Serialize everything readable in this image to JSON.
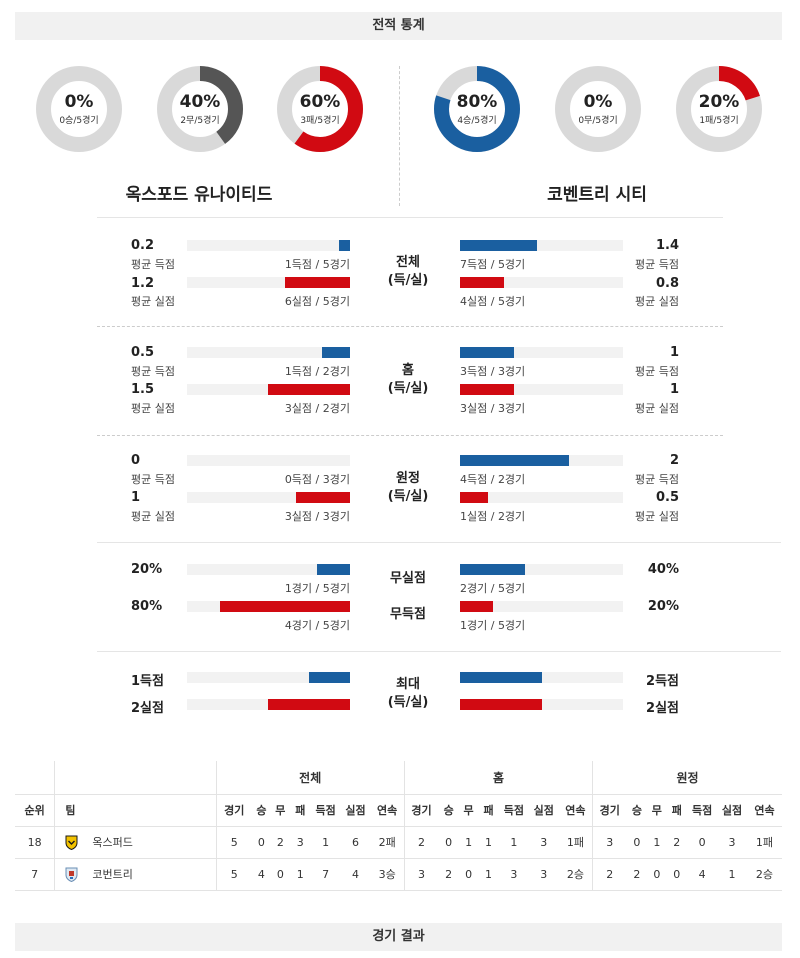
{
  "header": {
    "title": "전적 통계"
  },
  "footer": {
    "title": "경기 결과"
  },
  "colors": {
    "blue": "#1a5fa0",
    "red": "#d10a12",
    "dark": "#555555",
    "ring": "#d9d9d9"
  },
  "home": {
    "name": "옥스포드 유나이티드",
    "donuts": [
      {
        "pct": "0%",
        "sub": "0승/5경기",
        "value": 0,
        "color": "blue"
      },
      {
        "pct": "40%",
        "sub": "2무/5경기",
        "value": 0.4,
        "color": "dark"
      },
      {
        "pct": "60%",
        "sub": "3패/5경기",
        "value": 0.6,
        "color": "red"
      }
    ]
  },
  "away": {
    "name": "코벤트리 시티",
    "donuts": [
      {
        "pct": "80%",
        "sub": "4승/5경기",
        "value": 0.8,
        "color": "blue"
      },
      {
        "pct": "0%",
        "sub": "0무/5경기",
        "value": 0,
        "color": "dark"
      },
      {
        "pct": "20%",
        "sub": "1패/5경기",
        "value": 0.2,
        "color": "red"
      }
    ]
  },
  "stats": {
    "overall": {
      "label1": "전체",
      "label2": "(득/실)",
      "home": {
        "for_val": "0.2",
        "for_label": "평균 득점",
        "for_note": "1득점 / 5경기",
        "for_ratio": 0.07,
        "against_val": "1.2",
        "against_label": "평균 실점",
        "against_note": "6실점 / 5경기",
        "against_ratio": 0.4
      },
      "away": {
        "for_val": "1.4",
        "for_label": "평균 득점",
        "for_note": "7득점 / 5경기",
        "for_ratio": 0.47,
        "against_val": "0.8",
        "against_label": "평균 실점",
        "against_note": "4실점 / 5경기",
        "against_ratio": 0.27
      }
    },
    "home_games": {
      "label1": "홈",
      "label2": "(득/실)",
      "home": {
        "for_val": "0.5",
        "for_label": "평균 득점",
        "for_note": "1득점 / 2경기",
        "for_ratio": 0.17,
        "against_val": "1.5",
        "against_label": "평균 실점",
        "against_note": "3실점 / 2경기",
        "against_ratio": 0.5
      },
      "away": {
        "for_val": "1",
        "for_label": "평균 득점",
        "for_note": "3득점 / 3경기",
        "for_ratio": 0.33,
        "against_val": "1",
        "against_label": "평균 실점",
        "against_note": "3실점 / 3경기",
        "against_ratio": 0.33
      }
    },
    "away_games": {
      "label1": "원정",
      "label2": "(득/실)",
      "home": {
        "for_val": "0",
        "for_label": "평균 득점",
        "for_note": "0득점 / 3경기",
        "for_ratio": 0,
        "against_val": "1",
        "against_label": "평균 실점",
        "against_note": "3실점 / 3경기",
        "against_ratio": 0.33
      },
      "away": {
        "for_val": "2",
        "for_label": "평균 득점",
        "for_note": "4득점 / 2경기",
        "for_ratio": 0.67,
        "against_val": "0.5",
        "against_label": "평균 실점",
        "against_note": "1실점 / 2경기",
        "against_ratio": 0.17
      }
    },
    "clean": {
      "label_top": "무실점",
      "label_bottom": "무득점",
      "home": {
        "clean_val": "20%",
        "clean_note": "1경기 / 5경기",
        "clean_ratio": 0.2,
        "noscore_val": "80%",
        "noscore_note": "4경기 / 5경기",
        "noscore_ratio": 0.8
      },
      "away": {
        "clean_val": "40%",
        "clean_note": "2경기 / 5경기",
        "clean_ratio": 0.4,
        "noscore_val": "20%",
        "noscore_note": "1경기 / 5경기",
        "noscore_ratio": 0.2
      }
    },
    "max": {
      "label1": "최대",
      "label2": "(득/실)",
      "home": {
        "for_val": "1득점",
        "for_ratio": 0.25,
        "against_val": "2실점",
        "against_ratio": 0.5
      },
      "away": {
        "for_val": "2득점",
        "for_ratio": 0.5,
        "against_val": "2실점",
        "against_ratio": 0.5
      }
    }
  },
  "standings": {
    "groups": [
      "전체",
      "홈",
      "원정"
    ],
    "headers": {
      "rank": "순위",
      "team": "팀",
      "cols": [
        "경기",
        "승",
        "무",
        "패",
        "득점",
        "실점",
        "연속"
      ]
    },
    "rows": [
      {
        "rank": "18",
        "team": "옥스퍼드",
        "logo": "oxford-logo",
        "overall": [
          "5",
          "0",
          "2",
          "3",
          "1",
          "6",
          "2패"
        ],
        "home": [
          "2",
          "0",
          "1",
          "1",
          "1",
          "3",
          "1패"
        ],
        "away": [
          "3",
          "0",
          "1",
          "2",
          "0",
          "3",
          "1패"
        ]
      },
      {
        "rank": "7",
        "team": "코번트리",
        "logo": "coventry-logo",
        "overall": [
          "5",
          "4",
          "0",
          "1",
          "7",
          "4",
          "3승"
        ],
        "home": [
          "3",
          "2",
          "0",
          "1",
          "3",
          "3",
          "2승"
        ],
        "away": [
          "2",
          "2",
          "0",
          "0",
          "4",
          "1",
          "2승"
        ]
      }
    ]
  }
}
